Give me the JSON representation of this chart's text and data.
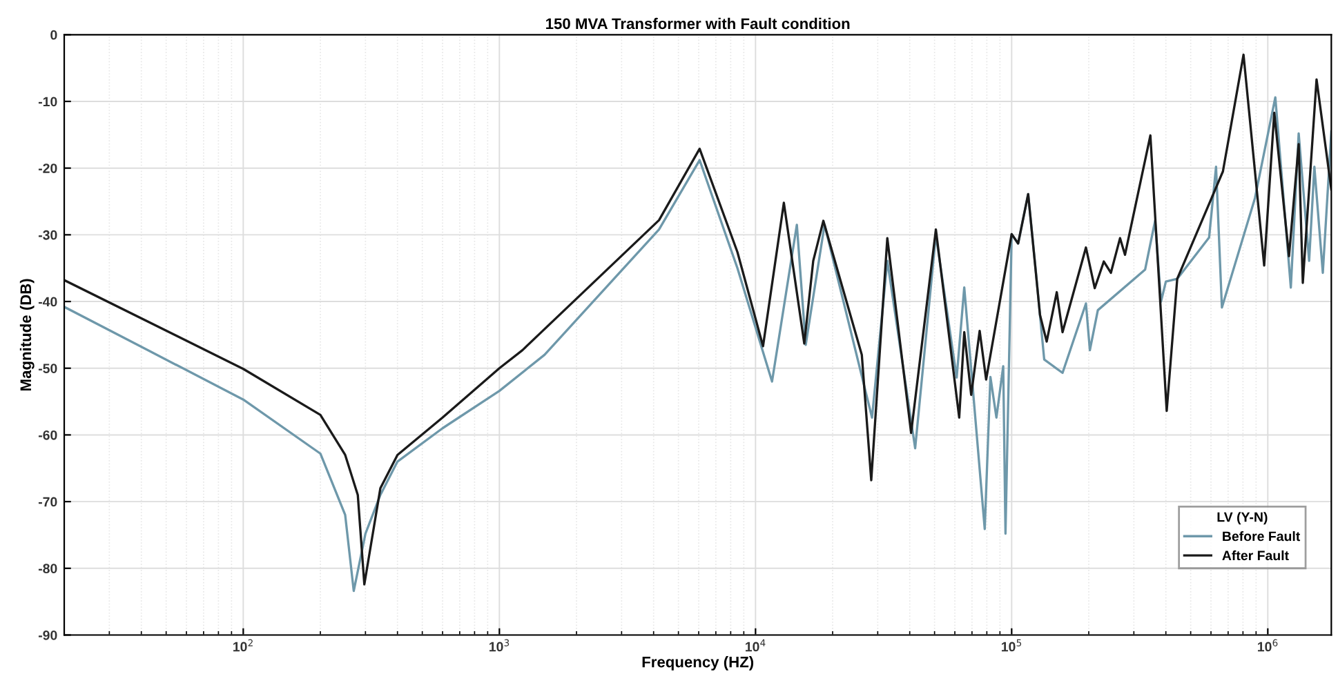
{
  "chart_data": {
    "type": "line",
    "title": "150 MVA Transformer with Fault condition",
    "xlabel": "Frequency (HZ)",
    "ylabel": "Magnitude (DB)",
    "legend_title": "LV (Y-N)",
    "log": "x",
    "grid": true,
    "legend": "bottom right",
    "marker": "none",
    "line_style": "solid",
    "xlim": [
      20,
      1770000
    ],
    "xticks": [
      {
        "value": 100,
        "label": "10$^{2}$"
      },
      {
        "value": 1000,
        "label": "10$^{3}$"
      },
      {
        "value": 10000,
        "label": "10$^{4}$"
      },
      {
        "value": 100000,
        "label": "10$^{5}$"
      },
      {
        "value": 1000000,
        "label": "10$^{6}$"
      }
    ],
    "ylim": [
      -90,
      0
    ],
    "yticks": [
      -90,
      -80,
      -70,
      -60,
      -50,
      -40,
      -30,
      -20,
      -10,
      0
    ],
    "series": [
      {
        "name": "Before Fault",
        "color": "#6e98aa",
        "x": [
          20,
          100,
          200,
          250,
          270,
          300,
          343,
          400,
          600,
          1000,
          1500,
          4200,
          6050,
          8500,
          11600,
          14500,
          15700,
          18600,
          28500,
          32700,
          42000,
          50600,
          61000,
          65300,
          78500,
          82600,
          87200,
          92700,
          94600,
          100000,
          106000,
          116000,
          124000,
          134000,
          158000,
          195000,
          202000,
          217000,
          332000,
          363000,
          383000,
          400000,
          443000,
          590000,
          628000,
          662000,
          891000,
          1070000,
          1230000,
          1320000,
          1450000,
          1520000,
          1640000,
          1770000
        ],
        "values": [
          -40.8,
          -54.7,
          -62.8,
          -72,
          -83.4,
          -74.8,
          -69,
          -64,
          -59,
          -53.4,
          -48,
          -29.2,
          -18.8,
          -35,
          -52,
          -28.5,
          -46.5,
          -28.5,
          -57.4,
          -33.9,
          -62,
          -30,
          -51.4,
          -37.9,
          -74.1,
          -51.3,
          -57.4,
          -49.7,
          -74.8,
          -29.9,
          -31.3,
          -23.9,
          -35.1,
          -48.7,
          -50.7,
          -40.3,
          -47.3,
          -41.3,
          -35.2,
          -27.9,
          -40,
          -37,
          -36.6,
          -30.4,
          -19.8,
          -40.9,
          -24.5,
          -9.4,
          -37.9,
          -14.8,
          -33.9,
          -19.8,
          -35.7,
          -14.5
        ]
      },
      {
        "name": "After Fault",
        "color": "#1a1a1a",
        "x": [
          20,
          100,
          200,
          250,
          280,
          297,
          343,
          400,
          600,
          1000,
          1230,
          4200,
          6050,
          8500,
          10700,
          12900,
          15500,
          16800,
          18400,
          26000,
          28300,
          32700,
          40500,
          50600,
          62400,
          65300,
          69500,
          75000,
          79500,
          100000,
          106000,
          116000,
          129000,
          137000,
          150000,
          158000,
          195000,
          211000,
          229000,
          244000,
          265000,
          277000,
          348000,
          403000,
          443000,
          668000,
          804000,
          968000,
          1060000,
          1210000,
          1320000,
          1370000,
          1550000,
          1770000
        ],
        "values": [
          -36.8,
          -50.1,
          -57,
          -63,
          -69,
          -82.4,
          -68,
          -63,
          -57.4,
          -50,
          -47.3,
          -27.8,
          -17.1,
          -32.6,
          -46.7,
          -25.2,
          -46.3,
          -33.9,
          -27.9,
          -48,
          -66.8,
          -30.5,
          -59.7,
          -29.2,
          -57.4,
          -44.6,
          -54,
          -44.4,
          -51.7,
          -29.9,
          -31.3,
          -23.9,
          -42,
          -46,
          -38.6,
          -44.6,
          -31.9,
          -38,
          -34,
          -35.7,
          -30.5,
          -33,
          -15.1,
          -56.4,
          -36.6,
          -20.5,
          -3.0,
          -34.6,
          -11.7,
          -33.2,
          -16.4,
          -37.2,
          -6.7,
          -23.2
        ]
      }
    ]
  }
}
